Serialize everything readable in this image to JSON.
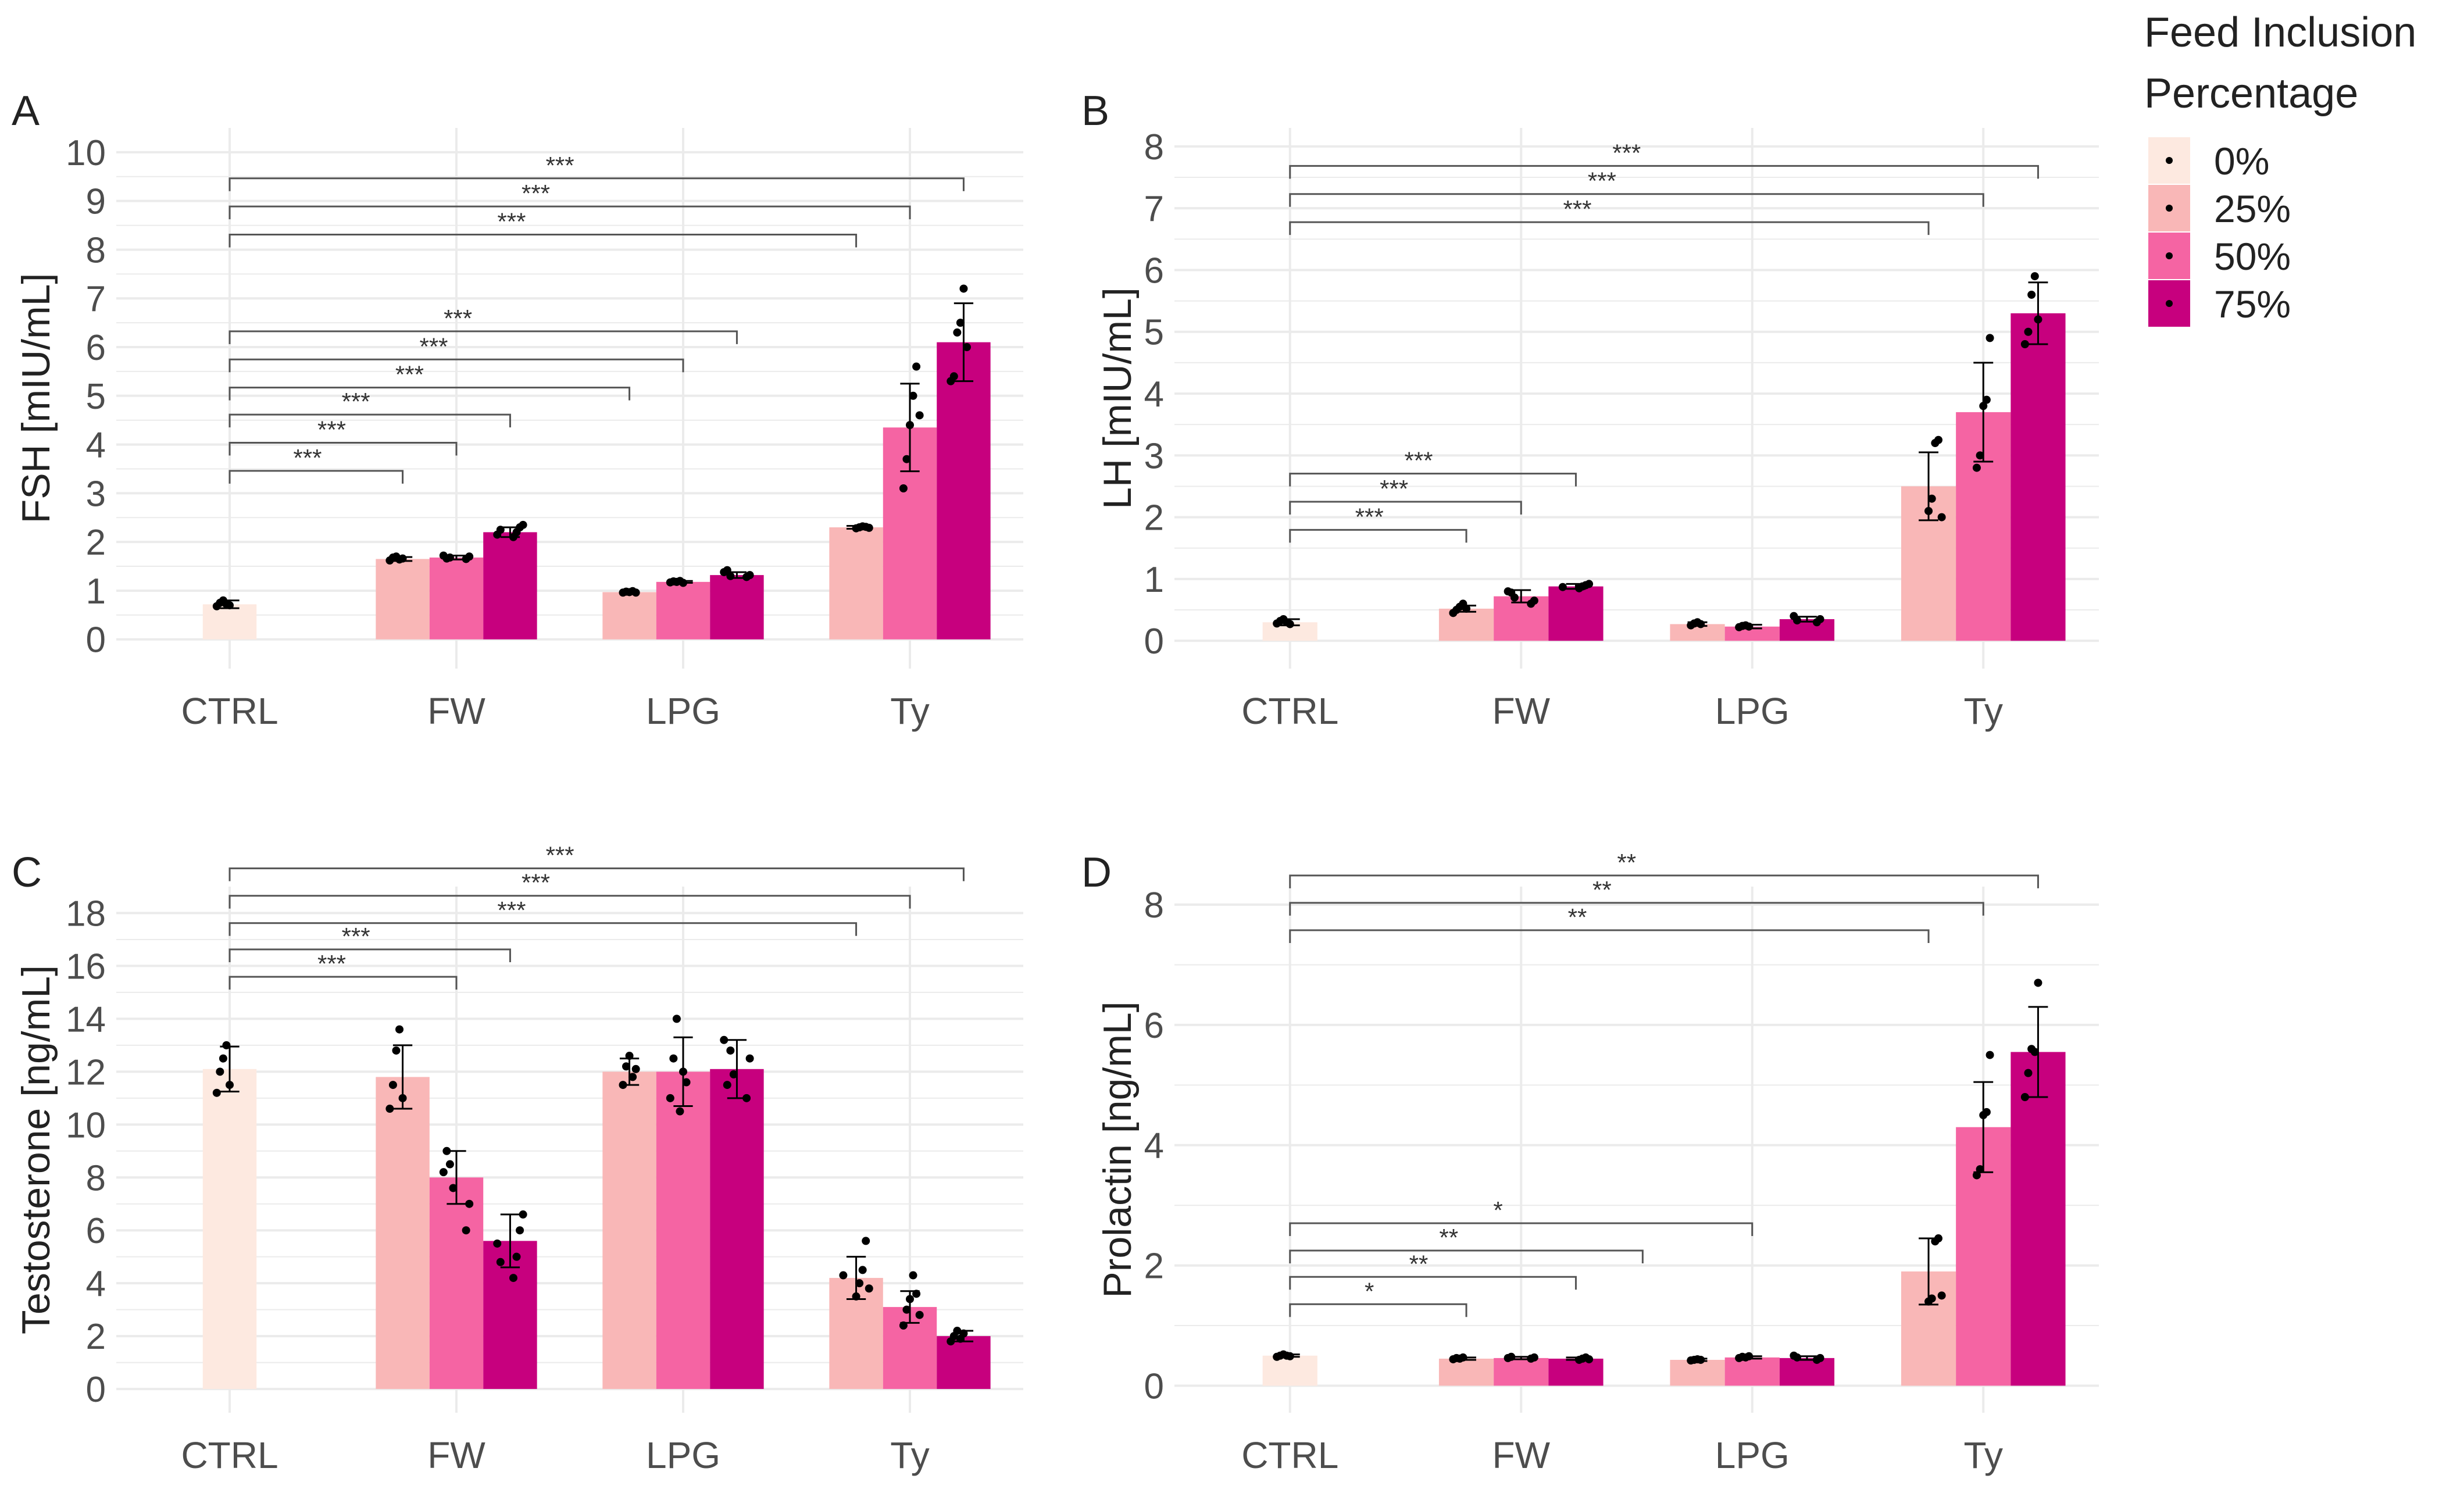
{
  "chart_data": [
    {
      "type": "bar",
      "panel_label": "A",
      "ylabel": "FSH [mIU/mL]",
      "ylim": [
        -0.6,
        10.5
      ],
      "yticks": [
        0,
        1,
        2,
        3,
        4,
        5,
        6,
        7,
        8,
        9,
        10
      ],
      "categories": [
        "CTRL",
        "FW",
        "LPG",
        "Ty"
      ],
      "series": [
        {
          "name": "0%",
          "values": [
            0.72,
            null,
            null,
            null
          ],
          "errors": [
            0.08,
            null,
            null,
            null
          ]
        },
        {
          "name": "25%",
          "values": [
            null,
            1.65,
            0.97,
            2.3
          ],
          "errors": [
            null,
            0.04,
            0.02,
            0.03
          ]
        },
        {
          "name": "50%",
          "values": [
            null,
            1.68,
            1.18,
            4.35
          ],
          "errors": [
            null,
            0.04,
            0.02,
            0.9
          ]
        },
        {
          "name": "75%",
          "values": [
            null,
            2.2,
            1.32,
            6.1
          ],
          "errors": [
            null,
            0.1,
            0.06,
            0.8
          ]
        }
      ],
      "points": [
        [
          [
            0.68,
            0.75,
            0.8,
            0.72,
            0.7
          ],
          [],
          [],
          []
        ],
        [
          [],
          [
            1.62,
            1.68,
            1.7,
            1.64,
            1.66
          ],
          [
            0.96,
            0.98,
            0.97,
            0.99,
            0.96
          ],
          [
            2.28,
            2.3,
            2.32,
            2.31,
            2.29
          ]
        ],
        [
          [],
          [
            1.65,
            1.7,
            1.72,
            1.66,
            1.68
          ],
          [
            1.17,
            1.19,
            1.18,
            1.2,
            1.16
          ],
          [
            3.1,
            3.7,
            4.4,
            5.0,
            5.6,
            4.6
          ]
        ],
        [
          [],
          [
            2.1,
            2.2,
            2.3,
            2.35,
            2.15,
            2.25
          ],
          [
            1.28,
            1.32,
            1.38,
            1.42,
            1.3
          ],
          [
            5.3,
            5.4,
            6.3,
            6.5,
            7.2,
            6.0
          ]
        ]
      ],
      "comparisons": [
        {
          "from_group": 0,
          "from_series": 0,
          "to_group": 3,
          "to_series": 3,
          "label": "***"
        },
        {
          "from_group": 0,
          "from_series": 0,
          "to_group": 3,
          "to_series": 2,
          "label": "***"
        },
        {
          "from_group": 0,
          "from_series": 0,
          "to_group": 3,
          "to_series": 1,
          "label": "***"
        },
        {
          "from_group": 0,
          "from_series": 0,
          "to_group": 2,
          "to_series": 3,
          "label": "***"
        },
        {
          "from_group": 0,
          "from_series": 0,
          "to_group": 2,
          "to_series": 2,
          "label": "***"
        },
        {
          "from_group": 0,
          "from_series": 0,
          "to_group": 2,
          "to_series": 1,
          "label": "***"
        },
        {
          "from_group": 0,
          "from_series": 0,
          "to_group": 1,
          "to_series": 3,
          "label": "***"
        },
        {
          "from_group": 0,
          "from_series": 0,
          "to_group": 1,
          "to_series": 2,
          "label": "***"
        },
        {
          "from_group": 0,
          "from_series": 0,
          "to_group": 1,
          "to_series": 1,
          "label": "***"
        }
      ]
    },
    {
      "type": "bar",
      "panel_label": "B",
      "ylabel": "LH [mIU/mL]",
      "ylim": [
        -0.45,
        8.3
      ],
      "yticks": [
        0,
        1,
        2,
        3,
        4,
        5,
        6,
        7,
        8
      ],
      "categories": [
        "CTRL",
        "FW",
        "LPG",
        "Ty"
      ],
      "series": [
        {
          "name": "0%",
          "values": [
            0.3,
            null,
            null,
            null
          ],
          "errors": [
            0.05,
            null,
            null,
            null
          ]
        },
        {
          "name": "25%",
          "values": [
            null,
            0.52,
            0.27,
            2.5
          ],
          "errors": [
            null,
            0.05,
            0.03,
            0.55
          ]
        },
        {
          "name": "50%",
          "values": [
            null,
            0.72,
            0.23,
            3.7
          ],
          "errors": [
            null,
            0.1,
            0.03,
            0.8
          ]
        },
        {
          "name": "75%",
          "values": [
            null,
            0.88,
            0.35,
            5.3
          ],
          "errors": [
            null,
            0.04,
            0.04,
            0.5
          ]
        }
      ],
      "points": [
        [
          [
            0.28,
            0.32,
            0.35,
            0.3,
            0.27
          ],
          [],
          [],
          []
        ],
        [
          [],
          [
            0.45,
            0.5,
            0.55,
            0.6,
            0.52
          ],
          [
            0.25,
            0.28,
            0.3,
            0.27
          ],
          [
            2.1,
            2.3,
            3.2,
            3.25,
            2.0
          ]
        ],
        [
          [],
          [
            0.6,
            0.65,
            0.8,
            0.78,
            0.7
          ],
          [
            0.22,
            0.24,
            0.25,
            0.23
          ],
          [
            2.8,
            3.0,
            3.8,
            3.9,
            4.9
          ]
        ],
        [
          [],
          [
            0.85,
            0.88,
            0.9,
            0.92,
            0.87
          ],
          [
            0.3,
            0.35,
            0.4,
            0.33
          ],
          [
            4.8,
            5.0,
            5.6,
            5.9,
            5.2
          ]
        ]
      ],
      "comparisons": [
        {
          "from_group": 0,
          "from_series": 0,
          "to_group": 3,
          "to_series": 3,
          "label": "***"
        },
        {
          "from_group": 0,
          "from_series": 0,
          "to_group": 3,
          "to_series": 2,
          "label": "***"
        },
        {
          "from_group": 0,
          "from_series": 0,
          "to_group": 3,
          "to_series": 1,
          "label": "***"
        },
        {
          "from_group": 0,
          "from_series": 0,
          "to_group": 1,
          "to_series": 3,
          "label": "***"
        },
        {
          "from_group": 0,
          "from_series": 0,
          "to_group": 1,
          "to_series": 2,
          "label": "***"
        },
        {
          "from_group": 0,
          "from_series": 0,
          "to_group": 1,
          "to_series": 1,
          "label": "***"
        }
      ]
    },
    {
      "type": "bar",
      "panel_label": "C",
      "ylabel": "Testosterone [ng/mL]",
      "ylim": [
        -0.9,
        19.0
      ],
      "yticks": [
        0,
        2,
        4,
        6,
        8,
        10,
        12,
        14,
        16,
        18
      ],
      "categories": [
        "CTRL",
        "FW",
        "LPG",
        "Ty"
      ],
      "series": [
        {
          "name": "0%",
          "values": [
            12.1,
            null,
            null,
            null
          ],
          "errors": [
            0.85,
            null,
            null,
            null
          ]
        },
        {
          "name": "25%",
          "values": [
            null,
            11.8,
            12.0,
            4.2
          ],
          "errors": [
            null,
            1.2,
            0.5,
            0.8
          ]
        },
        {
          "name": "50%",
          "values": [
            null,
            8.0,
            12.0,
            3.1
          ],
          "errors": [
            null,
            1.0,
            1.3,
            0.6
          ]
        },
        {
          "name": "75%",
          "values": [
            null,
            5.6,
            12.1,
            2.0
          ],
          "errors": [
            null,
            1.0,
            1.1,
            0.2
          ]
        }
      ],
      "points": [
        [
          [
            11.2,
            12.0,
            12.5,
            13.0,
            11.5
          ],
          [],
          [],
          []
        ],
        [
          [],
          [
            10.6,
            11.5,
            12.8,
            13.6,
            11.0
          ],
          [
            11.5,
            12.2,
            12.6,
            11.8,
            12.1
          ],
          [
            3.5,
            4.0,
            4.5,
            5.6,
            3.8,
            4.3
          ]
        ],
        [
          [],
          [
            6.0,
            7.0,
            8.2,
            9.0,
            8.5,
            7.6
          ],
          [
            11.0,
            12.5,
            14.0,
            10.5,
            12.0,
            11.6
          ],
          [
            2.4,
            3.0,
            3.4,
            4.3,
            3.6,
            2.8
          ]
        ],
        [
          [],
          [
            4.2,
            5.0,
            6.0,
            6.6,
            5.5,
            4.8
          ],
          [
            11.0,
            12.5,
            13.2,
            11.5,
            12.8,
            11.9
          ],
          [
            1.8,
            2.0,
            2.2,
            1.9,
            2.1
          ]
        ]
      ],
      "comparisons": [
        {
          "from_group": 0,
          "from_series": 0,
          "to_group": 3,
          "to_series": 3,
          "label": "***"
        },
        {
          "from_group": 0,
          "from_series": 0,
          "to_group": 3,
          "to_series": 2,
          "label": "***"
        },
        {
          "from_group": 0,
          "from_series": 0,
          "to_group": 3,
          "to_series": 1,
          "label": "***"
        },
        {
          "from_group": 0,
          "from_series": 0,
          "to_group": 1,
          "to_series": 3,
          "label": "***"
        },
        {
          "from_group": 0,
          "from_series": 0,
          "to_group": 1,
          "to_series": 2,
          "label": "***"
        }
      ]
    },
    {
      "type": "bar",
      "panel_label": "D",
      "ylabel": "Prolactin [ng/mL]",
      "ylim": [
        -0.45,
        8.3
      ],
      "yticks": [
        0,
        2,
        4,
        6,
        8
      ],
      "categories": [
        "CTRL",
        "FW",
        "LPG",
        "Ty"
      ],
      "series": [
        {
          "name": "0%",
          "values": [
            0.5,
            null,
            null,
            null
          ],
          "errors": [
            0.02,
            null,
            null,
            null
          ]
        },
        {
          "name": "25%",
          "values": [
            null,
            0.45,
            0.43,
            1.9
          ],
          "errors": [
            null,
            0.02,
            0.02,
            0.55
          ]
        },
        {
          "name": "50%",
          "values": [
            null,
            0.46,
            0.47,
            4.3
          ],
          "errors": [
            null,
            0.02,
            0.02,
            0.75
          ]
        },
        {
          "name": "75%",
          "values": [
            null,
            0.45,
            0.46,
            5.55
          ],
          "errors": [
            null,
            0.02,
            0.03,
            0.75
          ]
        }
      ],
      "points": [
        [
          [
            0.48,
            0.5,
            0.52,
            0.5,
            0.49
          ],
          [],
          [],
          []
        ],
        [
          [],
          [
            0.44,
            0.46,
            0.45,
            0.47
          ],
          [
            0.42,
            0.43,
            0.44,
            0.43
          ],
          [
            1.4,
            1.45,
            2.4,
            2.45,
            1.5
          ]
        ],
        [
          [],
          [
            0.45,
            0.47,
            0.46,
            0.48
          ],
          [
            0.46,
            0.48,
            0.47,
            0.49
          ],
          [
            3.5,
            3.6,
            4.5,
            4.55,
            5.5
          ]
        ],
        [
          [],
          [
            0.43,
            0.45,
            0.47,
            0.44
          ],
          [
            0.43,
            0.46,
            0.5,
            0.47
          ],
          [
            4.8,
            5.2,
            5.6,
            5.55,
            6.7
          ]
        ]
      ],
      "comparisons": [
        {
          "from_group": 0,
          "from_series": 0,
          "to_group": 3,
          "to_series": 3,
          "label": "**"
        },
        {
          "from_group": 0,
          "from_series": 0,
          "to_group": 3,
          "to_series": 2,
          "label": "**"
        },
        {
          "from_group": 0,
          "from_series": 0,
          "to_group": 3,
          "to_series": 1,
          "label": "**"
        },
        {
          "from_group": 0,
          "from_series": 0,
          "to_group": 2,
          "to_series": 2,
          "label": "*"
        },
        {
          "from_group": 0,
          "from_series": 0,
          "to_group": 2,
          "to_series": 0,
          "label": "**"
        },
        {
          "from_group": 0,
          "from_series": 0,
          "to_group": 1,
          "to_series": 3,
          "label": "**"
        },
        {
          "from_group": 0,
          "from_series": 0,
          "to_group": 1,
          "to_series": 1,
          "label": "*"
        }
      ]
    }
  ],
  "legend": {
    "title": "Feed Inclusion Percentage",
    "items": [
      {
        "label": "0%",
        "color": "#fde9e0"
      },
      {
        "label": "25%",
        "color": "#f9b7b7"
      },
      {
        "label": "50%",
        "color": "#f564a3"
      },
      {
        "label": "75%",
        "color": "#c7007e"
      }
    ]
  },
  "colors": {
    "grid": "#ebebeb",
    "axis_text": "#4d4d4d",
    "bracket": "#555555",
    "point": "#000000"
  }
}
